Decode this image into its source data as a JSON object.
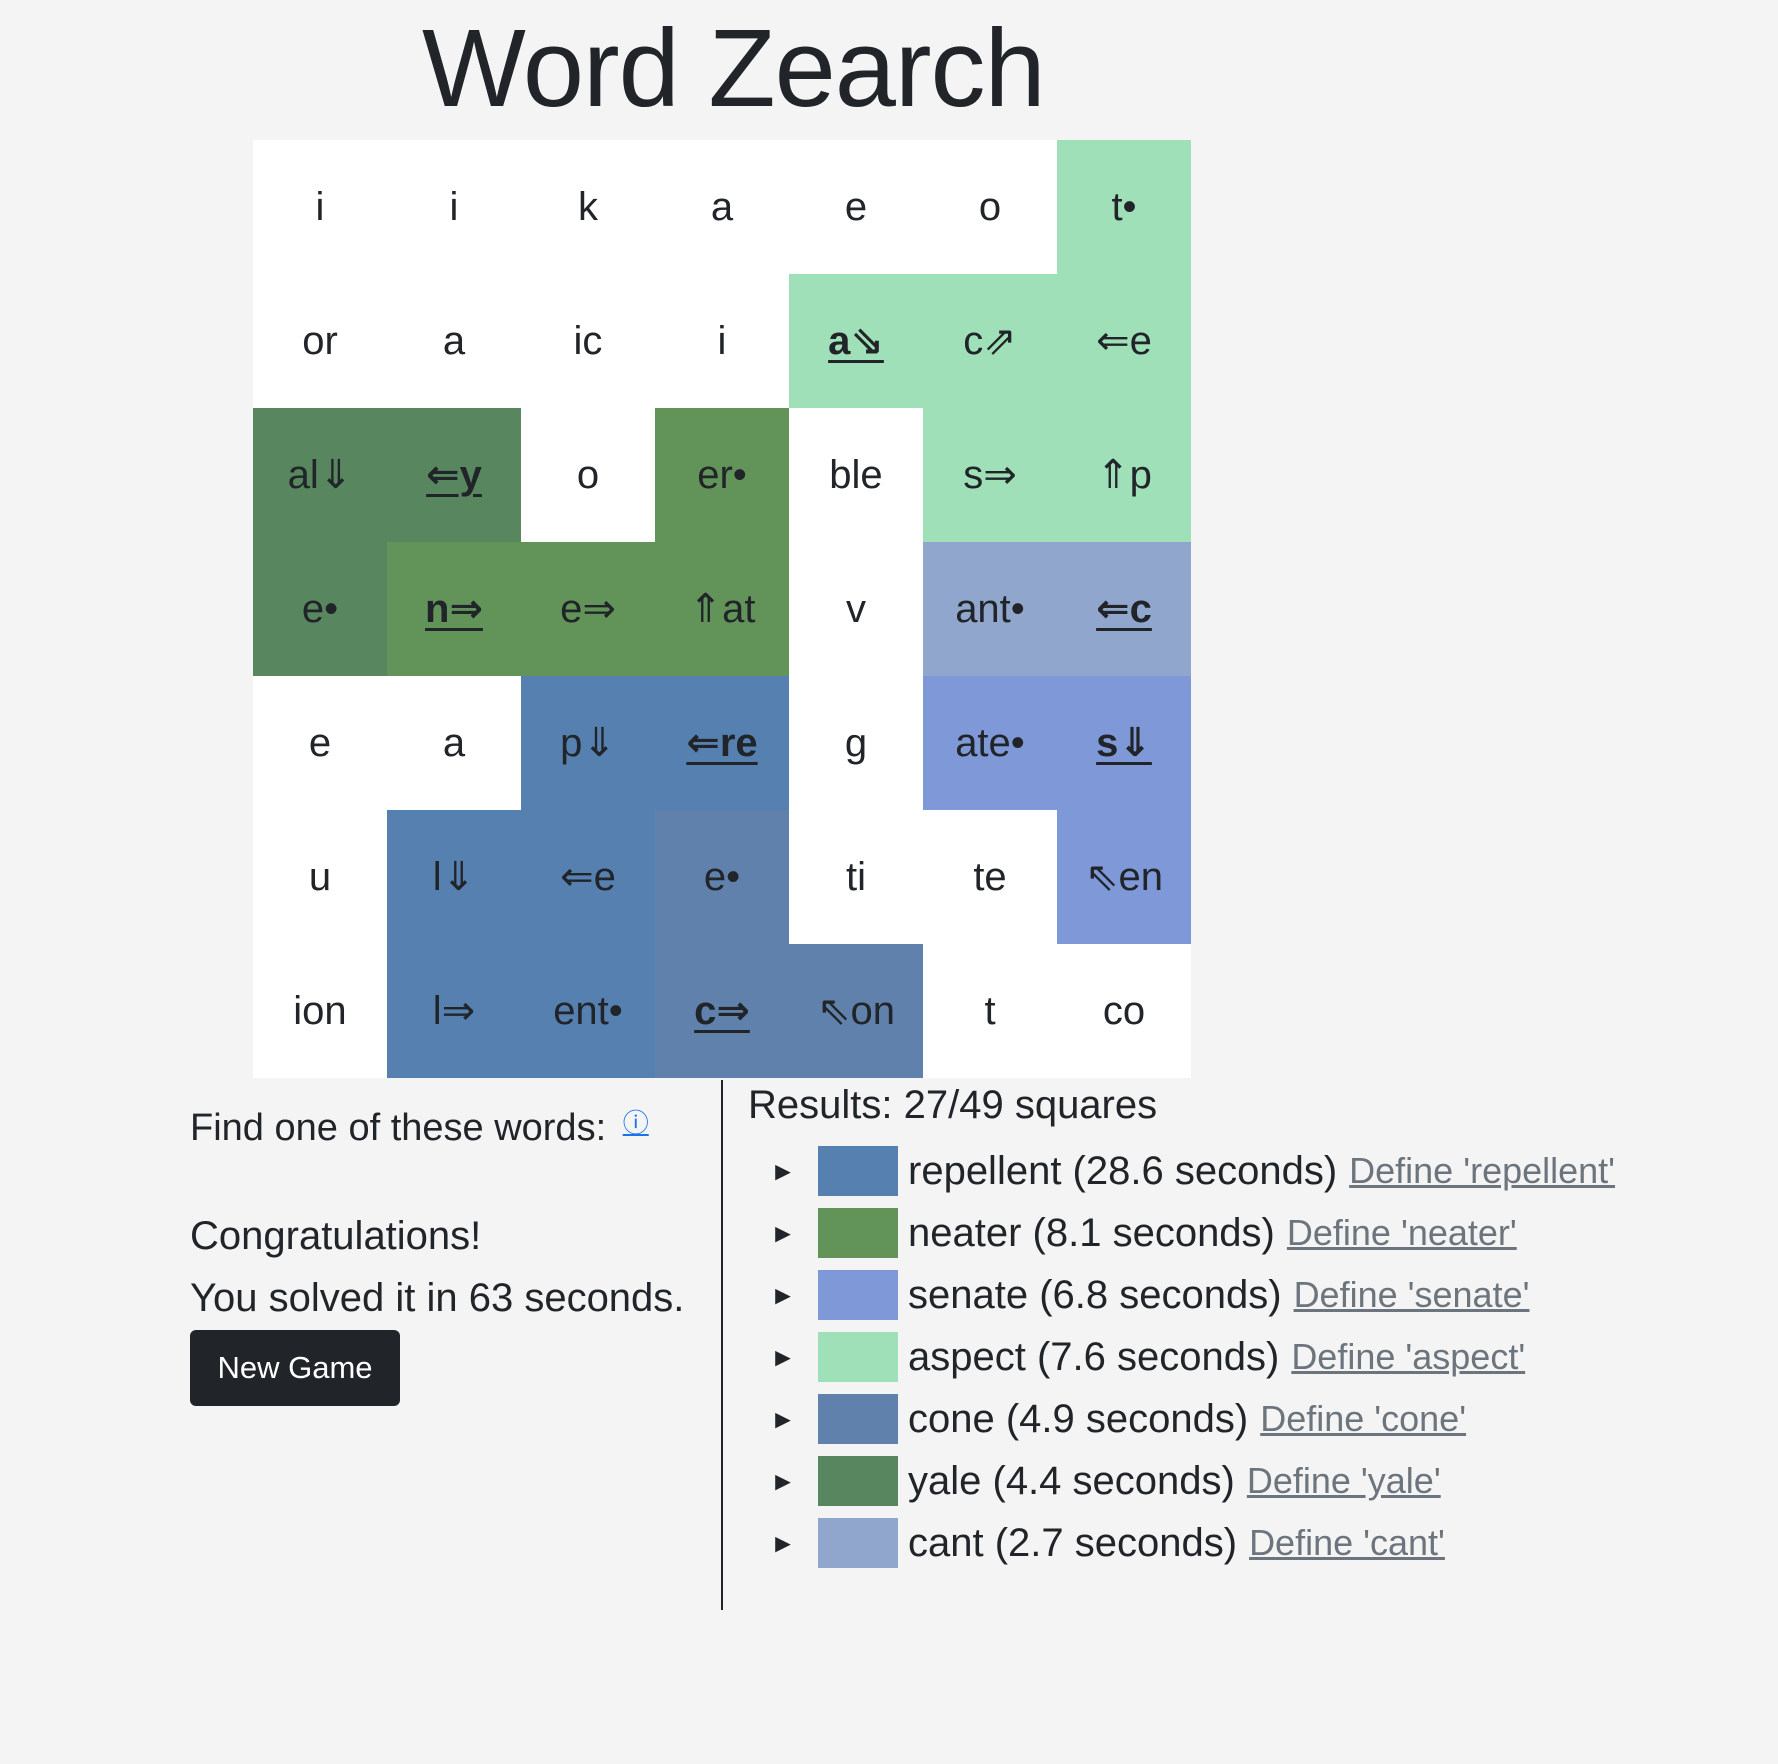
{
  "title": "Word Zearch",
  "colors": {
    "repellent": "#5580b0",
    "neater": "#62945a",
    "senate": "#7f98d8",
    "aspect": "#a0e0b8",
    "cone": "#5f81ac",
    "yale": "#58865f",
    "cant": "#91a6cc",
    "none": "#ffffff"
  },
  "grid": [
    [
      {
        "text": "i",
        "word": "none"
      },
      {
        "text": "i",
        "word": "none"
      },
      {
        "text": "k",
        "word": "none"
      },
      {
        "text": "a",
        "word": "none"
      },
      {
        "text": "e",
        "word": "none"
      },
      {
        "text": "o",
        "word": "none"
      },
      {
        "text": "t•",
        "word": "aspect"
      }
    ],
    [
      {
        "text": "or",
        "word": "none"
      },
      {
        "text": "a",
        "word": "none"
      },
      {
        "text": "ic",
        "word": "none"
      },
      {
        "text": "i",
        "word": "none"
      },
      {
        "text": "a⇘",
        "word": "aspect",
        "start": true
      },
      {
        "text": "c⇗",
        "word": "aspect"
      },
      {
        "text": "⇐e",
        "word": "aspect"
      }
    ],
    [
      {
        "text": "al⇓",
        "word": "yale"
      },
      {
        "text": "⇐y",
        "word": "yale",
        "start": true
      },
      {
        "text": "o",
        "word": "none"
      },
      {
        "text": "er•",
        "word": "neater"
      },
      {
        "text": "ble",
        "word": "none"
      },
      {
        "text": "s⇒",
        "word": "aspect"
      },
      {
        "text": "⇑p",
        "word": "aspect"
      }
    ],
    [
      {
        "text": "e•",
        "word": "yale"
      },
      {
        "text": "n⇒",
        "word": "neater",
        "start": true
      },
      {
        "text": "e⇒",
        "word": "neater"
      },
      {
        "text": "⇑at",
        "word": "neater"
      },
      {
        "text": "v",
        "word": "none"
      },
      {
        "text": "ant•",
        "word": "cant"
      },
      {
        "text": "⇐c",
        "word": "cant",
        "start": true
      }
    ],
    [
      {
        "text": "e",
        "word": "none"
      },
      {
        "text": "a",
        "word": "none"
      },
      {
        "text": "p⇓",
        "word": "repellent"
      },
      {
        "text": "⇐re",
        "word": "repellent",
        "start": true
      },
      {
        "text": "g",
        "word": "none"
      },
      {
        "text": "ate•",
        "word": "senate"
      },
      {
        "text": "s⇓",
        "word": "senate",
        "start": true
      }
    ],
    [
      {
        "text": "u",
        "word": "none"
      },
      {
        "text": "l⇓",
        "word": "repellent"
      },
      {
        "text": "⇐e",
        "word": "repellent"
      },
      {
        "text": "e•",
        "word": "cone"
      },
      {
        "text": "ti",
        "word": "none"
      },
      {
        "text": "te",
        "word": "none"
      },
      {
        "text": "⇖en",
        "word": "senate"
      }
    ],
    [
      {
        "text": "ion",
        "word": "none"
      },
      {
        "text": "l⇒",
        "word": "repellent"
      },
      {
        "text": "ent•",
        "word": "repellent"
      },
      {
        "text": "c⇒",
        "word": "cone",
        "start": true
      },
      {
        "text": "⇖on",
        "word": "cone"
      },
      {
        "text": "t",
        "word": "none"
      },
      {
        "text": "co",
        "word": "none"
      }
    ]
  ],
  "left": {
    "find_label": "Find one of these words:",
    "info_icon": "ⓘ",
    "congrats": "Congratulations!",
    "solved": "You solved it in 63 seconds.",
    "new_game": "New Game"
  },
  "results": {
    "title": "Results: 27/49 squares",
    "items": [
      {
        "key": "repellent",
        "label": "repellent (28.6 seconds)",
        "define": "Define 'repellent'"
      },
      {
        "key": "neater",
        "label": "neater (8.1 seconds)",
        "define": "Define 'neater'"
      },
      {
        "key": "senate",
        "label": "senate (6.8 seconds)",
        "define": "Define 'senate'"
      },
      {
        "key": "aspect",
        "label": "aspect (7.6 seconds)",
        "define": "Define 'aspect'"
      },
      {
        "key": "cone",
        "label": "cone (4.9 seconds)",
        "define": "Define 'cone'"
      },
      {
        "key": "yale",
        "label": "yale (4.4 seconds)",
        "define": "Define 'yale'"
      },
      {
        "key": "cant",
        "label": "cant (2.7 seconds)",
        "define": "Define 'cant'"
      }
    ],
    "expand_glyph": "►"
  }
}
